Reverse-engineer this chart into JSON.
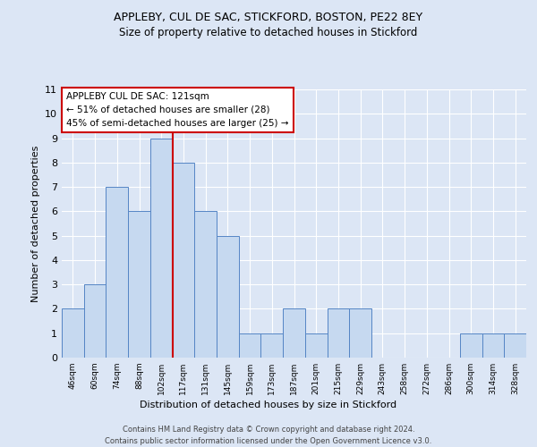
{
  "title1": "APPLEBY, CUL DE SAC, STICKFORD, BOSTON, PE22 8EY",
  "title2": "Size of property relative to detached houses in Stickford",
  "xlabel": "Distribution of detached houses by size in Stickford",
  "ylabel": "Number of detached properties",
  "bin_labels": [
    "46sqm",
    "60sqm",
    "74sqm",
    "88sqm",
    "102sqm",
    "117sqm",
    "131sqm",
    "145sqm",
    "159sqm",
    "173sqm",
    "187sqm",
    "201sqm",
    "215sqm",
    "229sqm",
    "243sqm",
    "258sqm",
    "272sqm",
    "286sqm",
    "300sqm",
    "314sqm",
    "328sqm"
  ],
  "bar_heights": [
    2,
    3,
    7,
    6,
    9,
    8,
    6,
    5,
    1,
    1,
    2,
    1,
    2,
    2,
    0,
    0,
    0,
    0,
    1,
    1,
    1
  ],
  "bar_color": "#c6d9f0",
  "bar_edge_color": "#5585c5",
  "red_line_x": 4.5,
  "annotation_title": "APPLEBY CUL DE SAC: 121sqm",
  "annotation_line1": "← 51% of detached houses are smaller (28)",
  "annotation_line2": "45% of semi-detached houses are larger (25) →",
  "annotation_box_color": "#ffffff",
  "annotation_box_edge": "#cc0000",
  "red_line_color": "#cc0000",
  "ylim": [
    0,
    11
  ],
  "yticks": [
    0,
    1,
    2,
    3,
    4,
    5,
    6,
    7,
    8,
    9,
    10,
    11
  ],
  "footer": "Contains HM Land Registry data © Crown copyright and database right 2024.\nContains public sector information licensed under the Open Government Licence v3.0.",
  "bg_color": "#dce6f5"
}
